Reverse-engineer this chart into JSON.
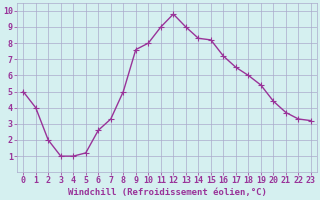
{
  "x": [
    0,
    1,
    2,
    3,
    4,
    5,
    6,
    7,
    8,
    9,
    10,
    11,
    12,
    13,
    14,
    15,
    16,
    17,
    18,
    19,
    20,
    21,
    22,
    23
  ],
  "y": [
    5.0,
    4.0,
    2.0,
    1.0,
    1.0,
    1.2,
    2.6,
    3.3,
    5.0,
    7.6,
    8.0,
    9.0,
    9.8,
    9.0,
    8.3,
    8.2,
    7.2,
    6.5,
    6.0,
    5.4,
    4.4,
    3.7,
    3.3,
    3.2
  ],
  "line_color": "#993399",
  "marker": "+",
  "marker_size": 4,
  "bg_color": "#d5f0f0",
  "grid_color": "#aaaacc",
  "xlabel": "Windchill (Refroidissement éolien,°C)",
  "xlim": [
    -0.5,
    23.5
  ],
  "ylim": [
    0,
    10.5
  ],
  "xticks": [
    0,
    1,
    2,
    3,
    4,
    5,
    6,
    7,
    8,
    9,
    10,
    11,
    12,
    13,
    14,
    15,
    16,
    17,
    18,
    19,
    20,
    21,
    22,
    23
  ],
  "yticks": [
    1,
    2,
    3,
    4,
    5,
    6,
    7,
    8,
    9,
    10
  ],
  "tick_color": "#993399",
  "label_color": "#993399",
  "xlabel_fontsize": 6.5,
  "tick_fontsize": 6,
  "line_width": 1.0,
  "marker_edge_width": 0.8
}
